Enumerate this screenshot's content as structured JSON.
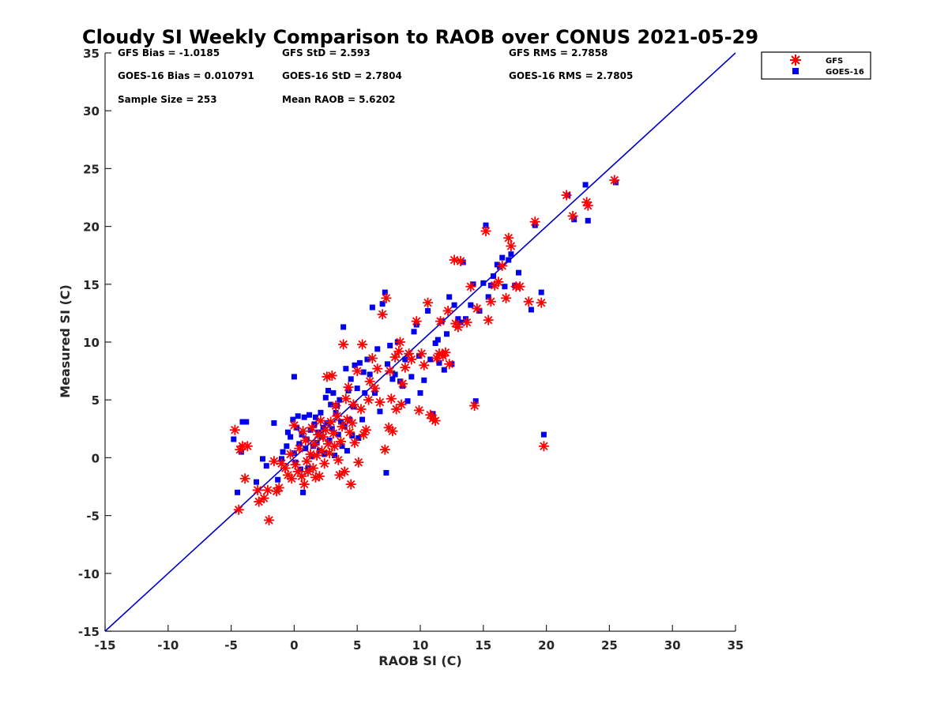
{
  "chart_data": {
    "type": "scatter",
    "title": "Cloudy SI Weekly Comparison to RAOB over CONUS 2021-05-29",
    "xlabel": "RAOB SI (C)",
    "ylabel": "Measured SI (C)",
    "xlim": [
      -15,
      35
    ],
    "ylim": [
      -15,
      35
    ],
    "xticks": [
      -15,
      -10,
      -5,
      0,
      5,
      10,
      15,
      20,
      25,
      30,
      35
    ],
    "yticks": [
      -15,
      -10,
      -5,
      0,
      5,
      10,
      15,
      20,
      25,
      30,
      35
    ],
    "grid": false,
    "legend_position": "outside-top-right",
    "reference_line": {
      "x": [
        -15,
        35
      ],
      "y": [
        -15,
        35
      ],
      "color": "#0000cc"
    },
    "stats": {
      "gfs_bias": "GFS Bias = -1.0185",
      "goes_bias": "GOES-16 Bias = 0.010791",
      "sample_size": "Sample Size = 253",
      "gfs_std": "GFS StD = 2.593",
      "goes_std": "GOES-16 StD = 2.7804",
      "mean_raob": "Mean RAOB = 5.6202",
      "gfs_rms": "GFS RMS = 2.7858",
      "goes_rms": "GOES-16 RMS = 2.7805"
    },
    "series": [
      {
        "name": "GFS",
        "marker": "asterisk",
        "color": "#ff0000",
        "points": [
          [
            -4.7,
            2.4
          ],
          [
            -4.3,
            0.7
          ],
          [
            -4.1,
            1.0
          ],
          [
            -3.9,
            -1.8
          ],
          [
            -3.7,
            1.0
          ],
          [
            -4.4,
            -4.5
          ],
          [
            -2.9,
            -2.8
          ],
          [
            -2.8,
            -3.8
          ],
          [
            -2.4,
            -3.5
          ],
          [
            -2.1,
            -2.8
          ],
          [
            -2.0,
            -5.4
          ],
          [
            -1.6,
            -0.3
          ],
          [
            -1.4,
            -2.9
          ],
          [
            -1.2,
            -2.6
          ],
          [
            -1.0,
            -0.5
          ],
          [
            -0.7,
            -0.9
          ],
          [
            -0.5,
            -1.5
          ],
          [
            -0.3,
            0.3
          ],
          [
            -0.2,
            -1.8
          ],
          [
            0.0,
            2.8
          ],
          [
            0.1,
            -0.6
          ],
          [
            0.3,
            -1.2
          ],
          [
            0.4,
            0.8
          ],
          [
            0.6,
            -1.6
          ],
          [
            0.7,
            2.3
          ],
          [
            0.8,
            -2.3
          ],
          [
            0.9,
            1.5
          ],
          [
            1.0,
            -0.3
          ],
          [
            1.1,
            -1.2
          ],
          [
            1.3,
            0.3
          ],
          [
            1.4,
            2.6
          ],
          [
            1.5,
            -0.9
          ],
          [
            1.6,
            1.2
          ],
          [
            1.7,
            -1.7
          ],
          [
            1.8,
            0.2
          ],
          [
            1.9,
            2.0
          ],
          [
            2.0,
            -1.6
          ],
          [
            2.1,
            3.2
          ],
          [
            2.2,
            0.6
          ],
          [
            2.3,
            1.8
          ],
          [
            2.4,
            -0.5
          ],
          [
            2.5,
            2.4
          ],
          [
            2.6,
            7.0
          ],
          [
            2.7,
            1.2
          ],
          [
            2.8,
            0.4
          ],
          [
            2.9,
            3.1
          ],
          [
            3.0,
            7.1
          ],
          [
            3.1,
            2.1
          ],
          [
            3.2,
            1.0
          ],
          [
            3.3,
            4.5
          ],
          [
            3.4,
            3.6
          ],
          [
            3.5,
            -0.2
          ],
          [
            3.6,
            -1.5
          ],
          [
            3.7,
            1.4
          ],
          [
            3.8,
            2.7
          ],
          [
            3.9,
            9.8
          ],
          [
            4.0,
            -1.2
          ],
          [
            4.1,
            5.1
          ],
          [
            4.2,
            3.3
          ],
          [
            4.3,
            6.1
          ],
          [
            4.4,
            2.2
          ],
          [
            4.5,
            -2.3
          ],
          [
            4.6,
            3.0
          ],
          [
            4.7,
            4.6
          ],
          [
            4.8,
            1.3
          ],
          [
            5.0,
            7.5
          ],
          [
            5.1,
            -0.4
          ],
          [
            5.3,
            4.2
          ],
          [
            5.4,
            9.8
          ],
          [
            5.5,
            2.0
          ],
          [
            5.7,
            2.4
          ],
          [
            5.9,
            5.0
          ],
          [
            6.0,
            6.6
          ],
          [
            6.2,
            8.6
          ],
          [
            6.4,
            6.0
          ],
          [
            6.6,
            7.7
          ],
          [
            6.8,
            4.8
          ],
          [
            7.0,
            12.4
          ],
          [
            7.2,
            0.7
          ],
          [
            7.3,
            13.8
          ],
          [
            7.5,
            2.6
          ],
          [
            7.6,
            7.5
          ],
          [
            7.7,
            5.1
          ],
          [
            7.8,
            2.3
          ],
          [
            8.0,
            8.7
          ],
          [
            8.1,
            4.2
          ],
          [
            8.3,
            9.2
          ],
          [
            8.4,
            10.0
          ],
          [
            8.5,
            4.6
          ],
          [
            8.6,
            6.4
          ],
          [
            8.8,
            7.8
          ],
          [
            9.1,
            9.0
          ],
          [
            9.3,
            8.5
          ],
          [
            9.7,
            11.8
          ],
          [
            9.9,
            4.1
          ],
          [
            10.1,
            9.0
          ],
          [
            10.3,
            8.0
          ],
          [
            10.6,
            13.4
          ],
          [
            10.8,
            3.7
          ],
          [
            11.0,
            3.4
          ],
          [
            11.2,
            3.2
          ],
          [
            11.3,
            8.6
          ],
          [
            11.5,
            9.0
          ],
          [
            11.6,
            11.8
          ],
          [
            11.8,
            8.8
          ],
          [
            12.0,
            9.1
          ],
          [
            12.2,
            12.7
          ],
          [
            12.3,
            8.1
          ],
          [
            12.7,
            17.1
          ],
          [
            12.8,
            11.6
          ],
          [
            13.0,
            11.3
          ],
          [
            13.2,
            17.0
          ],
          [
            13.7,
            11.7
          ],
          [
            14.0,
            14.8
          ],
          [
            14.3,
            4.5
          ],
          [
            14.5,
            12.9
          ],
          [
            15.2,
            19.6
          ],
          [
            15.4,
            11.9
          ],
          [
            15.6,
            13.5
          ],
          [
            15.9,
            14.9
          ],
          [
            16.2,
            15.2
          ],
          [
            16.5,
            16.6
          ],
          [
            16.8,
            13.8
          ],
          [
            17.0,
            19.0
          ],
          [
            17.2,
            18.3
          ],
          [
            17.6,
            14.8
          ],
          [
            17.9,
            14.8
          ],
          [
            18.6,
            13.5
          ],
          [
            19.1,
            20.4
          ],
          [
            19.6,
            13.4
          ],
          [
            19.8,
            1.0
          ],
          [
            21.6,
            22.7
          ],
          [
            22.1,
            20.9
          ],
          [
            23.2,
            22.1
          ],
          [
            23.3,
            21.8
          ],
          [
            25.4,
            24.0
          ]
        ]
      },
      {
        "name": "GOES-16",
        "marker": "square",
        "color": "#0000ee",
        "points": [
          [
            -4.8,
            1.6
          ],
          [
            -4.5,
            -3.0
          ],
          [
            -4.2,
            0.5
          ],
          [
            -4.1,
            3.1
          ],
          [
            -3.8,
            3.1
          ],
          [
            -3.0,
            -2.1
          ],
          [
            -2.5,
            -0.1
          ],
          [
            -2.2,
            -0.7
          ],
          [
            -1.6,
            3.0
          ],
          [
            -1.3,
            -1.9
          ],
          [
            -1.0,
            -0.1
          ],
          [
            -0.9,
            0.5
          ],
          [
            -0.6,
            1.0
          ],
          [
            -0.5,
            2.2
          ],
          [
            -0.3,
            1.8
          ],
          [
            -0.1,
            3.3
          ],
          [
            0.0,
            7.0
          ],
          [
            0.0,
            0.4
          ],
          [
            0.1,
            -0.4
          ],
          [
            0.2,
            2.6
          ],
          [
            0.3,
            3.6
          ],
          [
            0.4,
            1.2
          ],
          [
            0.5,
            -1.0
          ],
          [
            0.6,
            2.0
          ],
          [
            0.7,
            -3.0
          ],
          [
            0.8,
            3.5
          ],
          [
            0.9,
            0.8
          ],
          [
            1.0,
            1.6
          ],
          [
            1.1,
            -0.9
          ],
          [
            1.2,
            3.7
          ],
          [
            1.3,
            2.4
          ],
          [
            1.4,
            0.1
          ],
          [
            1.5,
            1.0
          ],
          [
            1.6,
            2.9
          ],
          [
            1.7,
            3.5
          ],
          [
            1.8,
            1.3
          ],
          [
            1.9,
            2.2
          ],
          [
            2.0,
            0.6
          ],
          [
            2.1,
            3.9
          ],
          [
            2.2,
            1.8
          ],
          [
            2.3,
            2.6
          ],
          [
            2.4,
            0.3
          ],
          [
            2.5,
            5.2
          ],
          [
            2.6,
            3.0
          ],
          [
            2.7,
            5.8
          ],
          [
            2.8,
            1.5
          ],
          [
            2.9,
            4.6
          ],
          [
            3.0,
            2.5
          ],
          [
            3.1,
            5.6
          ],
          [
            3.2,
            0.2
          ],
          [
            3.3,
            3.9
          ],
          [
            3.4,
            4.5
          ],
          [
            3.5,
            2.0
          ],
          [
            3.6,
            5.0
          ],
          [
            3.7,
            3.1
          ],
          [
            3.8,
            1.0
          ],
          [
            3.9,
            11.3
          ],
          [
            4.0,
            2.7
          ],
          [
            4.1,
            7.7
          ],
          [
            4.2,
            0.6
          ],
          [
            4.3,
            5.8
          ],
          [
            4.4,
            3.3
          ],
          [
            4.5,
            6.8
          ],
          [
            4.6,
            1.9
          ],
          [
            4.7,
            4.4
          ],
          [
            4.8,
            8.0
          ],
          [
            5.0,
            6.0
          ],
          [
            5.1,
            1.7
          ],
          [
            5.2,
            8.2
          ],
          [
            5.4,
            3.3
          ],
          [
            5.5,
            7.4
          ],
          [
            5.6,
            5.6
          ],
          [
            5.8,
            8.5
          ],
          [
            6.0,
            7.2
          ],
          [
            6.2,
            13.0
          ],
          [
            6.4,
            5.6
          ],
          [
            6.6,
            9.4
          ],
          [
            6.8,
            4.0
          ],
          [
            7.0,
            13.3
          ],
          [
            7.2,
            14.3
          ],
          [
            7.3,
            -1.3
          ],
          [
            7.4,
            8.1
          ],
          [
            7.6,
            9.7
          ],
          [
            7.8,
            6.8
          ],
          [
            8.0,
            7.2
          ],
          [
            8.2,
            10.0
          ],
          [
            8.4,
            6.6
          ],
          [
            8.6,
            6.2
          ],
          [
            8.8,
            8.5
          ],
          [
            9.0,
            4.9
          ],
          [
            9.3,
            7.0
          ],
          [
            9.5,
            10.9
          ],
          [
            9.7,
            11.5
          ],
          [
            9.9,
            8.8
          ],
          [
            10.0,
            5.6
          ],
          [
            10.3,
            6.7
          ],
          [
            10.6,
            12.7
          ],
          [
            10.8,
            8.5
          ],
          [
            11.0,
            3.8
          ],
          [
            11.2,
            9.9
          ],
          [
            11.4,
            10.2
          ],
          [
            11.5,
            8.2
          ],
          [
            11.7,
            11.8
          ],
          [
            11.9,
            7.6
          ],
          [
            12.1,
            10.7
          ],
          [
            12.3,
            13.9
          ],
          [
            12.5,
            8.1
          ],
          [
            12.7,
            13.2
          ],
          [
            13.0,
            12.0
          ],
          [
            13.2,
            11.7
          ],
          [
            13.4,
            16.9
          ],
          [
            13.6,
            12.0
          ],
          [
            14.0,
            13.2
          ],
          [
            14.2,
            15.0
          ],
          [
            14.4,
            4.9
          ],
          [
            14.7,
            12.7
          ],
          [
            15.0,
            15.1
          ],
          [
            15.2,
            20.1
          ],
          [
            15.4,
            13.9
          ],
          [
            15.6,
            14.9
          ],
          [
            15.8,
            15.7
          ],
          [
            16.1,
            16.7
          ],
          [
            16.3,
            16.5
          ],
          [
            16.5,
            17.3
          ],
          [
            16.7,
            14.8
          ],
          [
            17.0,
            17.1
          ],
          [
            17.2,
            17.6
          ],
          [
            17.5,
            14.9
          ],
          [
            17.8,
            16.0
          ],
          [
            18.8,
            12.8
          ],
          [
            19.1,
            20.1
          ],
          [
            19.6,
            14.3
          ],
          [
            19.8,
            2.0
          ],
          [
            21.7,
            22.7
          ],
          [
            22.2,
            20.6
          ],
          [
            23.1,
            23.6
          ],
          [
            23.3,
            20.5
          ],
          [
            25.5,
            23.8
          ]
        ]
      }
    ]
  }
}
